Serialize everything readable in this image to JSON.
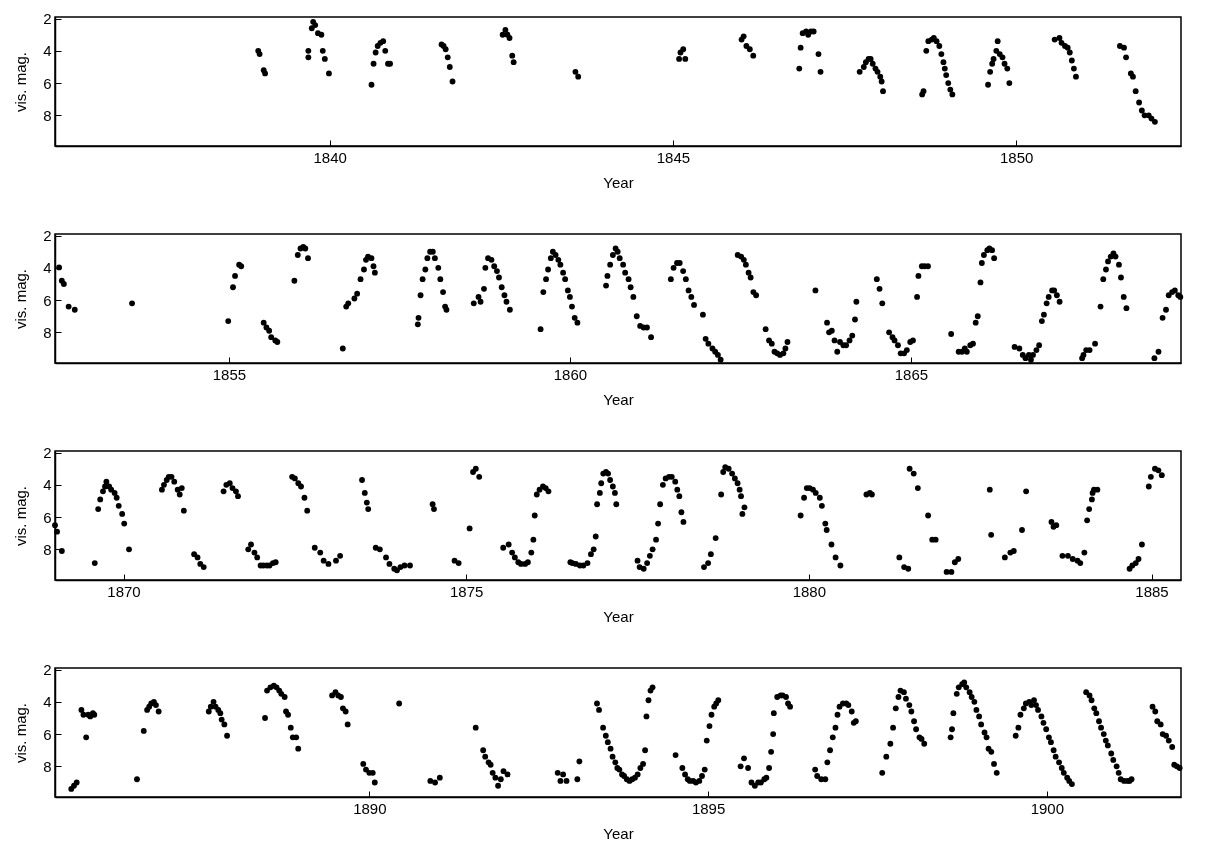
{
  "chart_data": [
    {
      "type": "scatter",
      "xlabel": "Year",
      "ylabel": "vis. mag.",
      "xlim": [
        1836.0,
        1852.4
      ],
      "xticks": [
        1840,
        1845,
        1850
      ],
      "ylim": [
        9.9,
        1.9
      ],
      "yticks": [
        2,
        4,
        6,
        8
      ],
      "grid": false,
      "marker": "circle",
      "series": [
        {
          "color": "#000000",
          "x": [
            1838.96,
            1838.98,
            1839.04,
            1839.06,
            1839.69,
            1839.69,
            1839.74,
            1839.76,
            1839.79,
            1839.83,
            1839.88,
            1839.9,
            1839.93,
            1839.99,
            1840.61,
            1840.64,
            1840.67,
            1840.7,
            1840.74,
            1840.78,
            1840.81,
            1840.85,
            1840.88,
            1841.63,
            1841.66,
            1841.69,
            1841.72,
            1841.75,
            1841.79,
            1842.52,
            1842.56,
            1842.59,
            1842.62,
            1842.66,
            1842.68,
            1843.58,
            1843.62,
            1845.09,
            1845.11,
            1845.15,
            1845.18,
            1846.0,
            1846.03,
            1846.07,
            1846.12,
            1846.17,
            1846.84,
            1846.86,
            1846.89,
            1846.94,
            1846.97,
            1847.01,
            1847.05,
            1847.12,
            1847.15,
            1847.72,
            1847.78,
            1847.81,
            1847.85,
            1847.88,
            1847.91,
            1847.95,
            1847.98,
            1848.02,
            1848.04,
            1848.06,
            1848.63,
            1848.65,
            1848.69,
            1848.72,
            1848.77,
            1848.8,
            1848.84,
            1848.88,
            1848.91,
            1848.94,
            1848.96,
            1848.98,
            1849.01,
            1849.04,
            1849.07,
            1849.59,
            1849.62,
            1849.65,
            1849.67,
            1849.71,
            1849.73,
            1849.76,
            1849.8,
            1849.83,
            1849.87,
            1849.9,
            1850.56,
            1850.63,
            1850.66,
            1850.71,
            1850.75,
            1850.78,
            1850.81,
            1850.84,
            1850.87,
            1851.51,
            1851.57,
            1851.6,
            1851.67,
            1851.7,
            1851.74,
            1851.79,
            1851.83,
            1851.87,
            1851.93,
            1851.97,
            1852.02
          ],
          "values": [
            4.0,
            4.2,
            5.2,
            5.4,
            4.0,
            4.4,
            2.6,
            2.2,
            2.4,
            2.9,
            3.0,
            4.0,
            4.5,
            5.4,
            6.1,
            4.8,
            4.1,
            3.7,
            3.5,
            3.4,
            4.0,
            4.8,
            4.8,
            3.6,
            3.7,
            3.9,
            4.4,
            5.0,
            5.9,
            3.0,
            2.7,
            3.0,
            3.2,
            4.3,
            4.7,
            5.3,
            5.6,
            4.5,
            4.1,
            3.9,
            4.5,
            3.3,
            3.1,
            3.7,
            3.9,
            4.3,
            5.1,
            3.8,
            2.9,
            2.8,
            3.0,
            2.8,
            2.8,
            4.2,
            5.3,
            5.3,
            5.0,
            4.7,
            4.5,
            4.5,
            4.8,
            5.1,
            5.3,
            5.6,
            5.9,
            6.5,
            6.7,
            6.5,
            4.0,
            3.4,
            3.3,
            3.2,
            3.4,
            3.7,
            4.2,
            4.7,
            5.1,
            5.5,
            6.0,
            6.4,
            6.7,
            6.1,
            5.3,
            4.8,
            4.5,
            4.0,
            3.4,
            4.2,
            4.4,
            4.8,
            5.1,
            6.0,
            3.3,
            3.2,
            3.5,
            3.7,
            3.8,
            4.1,
            4.6,
            5.1,
            5.6,
            3.7,
            3.8,
            4.4,
            5.4,
            5.6,
            6.5,
            7.2,
            7.7,
            8.0,
            8.0,
            8.2,
            8.4
          ]
        }
      ]
    },
    {
      "type": "scatter",
      "xlabel": "Year",
      "ylabel": "vis. mag.",
      "xlim": [
        1852.45,
        1868.96
      ],
      "xticks": [
        1855,
        1860,
        1865
      ],
      "ylim": [
        9.9,
        1.9
      ],
      "yticks": [
        2,
        4,
        6,
        8
      ],
      "grid": false,
      "marker": "circle",
      "series": [
        {
          "color": "#000000",
          "x": [
            1852.51,
            1852.55,
            1852.58,
            1852.65,
            1852.74,
            1853.58,
            1854.99,
            1855.06,
            1855.09,
            1855.15,
            1855.18,
            1855.51,
            1855.55,
            1855.59,
            1855.62,
            1855.68,
            1855.71,
            1855.96,
            1856.01,
            1856.05,
            1856.09,
            1856.12,
            1856.16,
            1856.67,
            1856.72,
            1856.75,
            1856.84,
            1856.88,
            1856.93,
            1856.98,
            1857.01,
            1857.04,
            1857.09,
            1857.12,
            1857.14,
            1857.77,
            1857.78,
            1857.81,
            1857.84,
            1857.88,
            1857.91,
            1857.95,
            1857.99,
            1858.02,
            1858.07,
            1858.1,
            1858.14,
            1858.17,
            1858.19,
            1858.59,
            1858.66,
            1858.69,
            1858.74,
            1858.76,
            1858.8,
            1858.85,
            1858.89,
            1858.93,
            1858.96,
            1859.0,
            1859.04,
            1859.07,
            1859.12,
            1859.57,
            1859.61,
            1859.65,
            1859.68,
            1859.72,
            1859.75,
            1859.79,
            1859.83,
            1859.86,
            1859.9,
            1859.93,
            1859.97,
            1860.0,
            1860.03,
            1860.07,
            1860.11,
            1860.53,
            1860.55,
            1860.59,
            1860.63,
            1860.67,
            1860.7,
            1860.73,
            1860.78,
            1860.81,
            1860.86,
            1860.89,
            1860.93,
            1860.98,
            1861.03,
            1861.08,
            1861.13,
            1861.19,
            1861.48,
            1861.52,
            1861.57,
            1861.61,
            1861.66,
            1861.7,
            1861.74,
            1861.78,
            1861.82,
            1861.95,
            1861.99,
            1862.03,
            1862.09,
            1862.13,
            1862.17,
            1862.21,
            1862.46,
            1862.51,
            1862.55,
            1862.58,
            1862.62,
            1862.65,
            1862.69,
            1862.73,
            1862.87,
            1862.92,
            1862.96,
            1863.0,
            1863.04,
            1863.08,
            1863.13,
            1863.16,
            1863.19,
            1863.6,
            1863.77,
            1863.8,
            1863.84,
            1863.88,
            1863.92,
            1863.96,
            1864.01,
            1864.05,
            1864.1,
            1864.14,
            1864.18,
            1864.2,
            1864.5,
            1864.54,
            1864.58,
            1864.68,
            1864.73,
            1864.76,
            1864.81,
            1864.85,
            1864.9,
            1864.94,
            1864.99,
            1865.03,
            1865.09,
            1865.11,
            1865.16,
            1865.2,
            1865.25,
            1865.59,
            1865.7,
            1865.75,
            1865.79,
            1865.82,
            1865.87,
            1865.91,
            1865.95,
            1865.98,
            1866.02,
            1866.04,
            1866.07,
            1866.12,
            1866.15,
            1866.19,
            1866.22,
            1866.52,
            1866.59,
            1866.64,
            1866.68,
            1866.73,
            1866.76,
            1866.79,
            1866.84,
            1866.88,
            1866.92,
            1866.95,
            1866.99,
            1867.02,
            1867.07,
            1867.1,
            1867.14,
            1867.18,
            1867.51,
            1867.53,
            1867.57,
            1867.62,
            1867.7,
            1867.78,
            1867.82,
            1867.86,
            1867.89,
            1867.93,
            1867.97,
            1868.0,
            1868.05,
            1868.08,
            1868.12,
            1868.16,
            1868.57,
            1868.63,
            1868.69,
            1868.74,
            1868.78,
            1868.83,
            1868.87,
            1868.92,
            1868.95
          ],
          "values": [
            3.97,
            4.8,
            5.0,
            6.4,
            6.6,
            6.2,
            7.3,
            5.2,
            4.5,
            3.8,
            3.9,
            7.4,
            7.7,
            7.9,
            8.3,
            8.5,
            8.6,
            4.8,
            3.2,
            2.8,
            2.7,
            2.8,
            3.4,
            9.0,
            6.4,
            6.2,
            5.9,
            5.6,
            4.7,
            4.1,
            3.5,
            3.3,
            3.4,
            3.9,
            4.3,
            7.5,
            7.1,
            5.7,
            4.7,
            4.1,
            3.4,
            3.0,
            3.0,
            3.4,
            4.0,
            4.7,
            5.5,
            6.4,
            6.6,
            6.2,
            5.8,
            6.1,
            5.3,
            4.0,
            3.4,
            3.5,
            3.9,
            4.2,
            4.6,
            5.2,
            5.7,
            6.1,
            6.6,
            7.8,
            5.5,
            4.7,
            4.1,
            3.4,
            3.0,
            3.2,
            3.5,
            3.8,
            4.3,
            4.7,
            5.4,
            5.8,
            6.4,
            7.1,
            7.4,
            5.1,
            4.5,
            3.8,
            3.2,
            2.8,
            3.0,
            3.4,
            3.8,
            4.3,
            4.7,
            5.2,
            5.8,
            7.0,
            7.6,
            7.7,
            7.7,
            8.3,
            4.7,
            4.0,
            3.7,
            3.7,
            4.2,
            4.7,
            5.4,
            5.8,
            6.3,
            6.9,
            8.4,
            8.7,
            9.0,
            9.2,
            9.4,
            9.7,
            3.2,
            3.3,
            3.5,
            3.8,
            4.3,
            4.6,
            5.5,
            5.7,
            7.8,
            8.5,
            8.7,
            9.2,
            9.3,
            9.4,
            9.3,
            9.0,
            8.6,
            5.4,
            7.4,
            8.0,
            7.9,
            8.5,
            9.2,
            8.6,
            8.8,
            8.8,
            8.5,
            8.2,
            7.2,
            6.1,
            4.7,
            5.3,
            6.2,
            8.0,
            8.3,
            8.5,
            8.8,
            9.3,
            9.3,
            9.1,
            8.6,
            8.5,
            5.8,
            4.5,
            3.9,
            3.9,
            3.9,
            8.1,
            9.2,
            9.2,
            9.0,
            9.2,
            8.8,
            8.7,
            7.4,
            7.0,
            4.9,
            3.7,
            3.2,
            2.9,
            2.8,
            2.9,
            3.4,
            8.9,
            9.0,
            9.4,
            9.6,
            9.4,
            9.7,
            9.4,
            9.1,
            8.8,
            7.3,
            6.9,
            6.2,
            5.8,
            5.4,
            5.4,
            5.7,
            6.1,
            9.6,
            9.4,
            9.1,
            9.1,
            8.7,
            6.4,
            4.7,
            4.1,
            3.6,
            3.3,
            3.1,
            3.3,
            3.8,
            4.6,
            5.8,
            6.5,
            9.6,
            9.2,
            7.1,
            6.6,
            5.7,
            5.5,
            5.4,
            5.7,
            5.8
          ]
        }
      ]
    },
    {
      "type": "scatter",
      "xlabel": "Year",
      "ylabel": "vis. mag.",
      "xlim": [
        1869.0,
        1885.43
      ],
      "xticks": [
        1870,
        1875,
        1880,
        1885
      ],
      "ylim": [
        9.9,
        1.9
      ],
      "yticks": [
        2,
        4,
        6,
        8
      ],
      "grid": false,
      "marker": "circle",
      "series": [
        {
          "color": "#000000",
          "x": [
            1869.0,
            1869.03,
            1869.1,
            1869.58,
            1869.63,
            1869.66,
            1869.7,
            1869.73,
            1869.75,
            1869.79,
            1869.82,
            1869.87,
            1869.9,
            1869.93,
            1869.98,
            1870.01,
            1870.08,
            1870.56,
            1870.59,
            1870.63,
            1870.66,
            1870.7,
            1870.74,
            1870.79,
            1870.82,
            1870.85,
            1870.88,
            1871.03,
            1871.08,
            1871.12,
            1871.17,
            1871.46,
            1871.5,
            1871.55,
            1871.59,
            1871.64,
            1871.67,
            1871.82,
            1871.86,
            1871.91,
            1871.95,
            1872.0,
            1872.04,
            1872.09,
            1872.13,
            1872.18,
            1872.22,
            1872.46,
            1872.5,
            1872.55,
            1872.59,
            1872.64,
            1872.68,
            1872.79,
            1872.87,
            1872.92,
            1872.99,
            1873.1,
            1873.16,
            1873.48,
            1873.52,
            1873.55,
            1873.57,
            1873.68,
            1873.74,
            1873.83,
            1873.88,
            1873.95,
            1873.99,
            1874.04,
            1874.1,
            1874.18,
            1874.51,
            1874.53,
            1874.83,
            1874.89,
            1875.05,
            1875.1,
            1875.14,
            1875.19,
            1875.54,
            1875.62,
            1875.67,
            1875.71,
            1875.76,
            1875.8,
            1875.86,
            1875.9,
            1875.95,
            1875.98,
            1876.0,
            1876.03,
            1876.07,
            1876.12,
            1876.16,
            1876.2,
            1876.52,
            1876.55,
            1876.6,
            1876.66,
            1876.71,
            1876.77,
            1876.82,
            1876.86,
            1876.89,
            1876.91,
            1876.95,
            1876.97,
            1877.0,
            1877.04,
            1877.07,
            1877.1,
            1877.14,
            1877.17,
            1877.19,
            1877.5,
            1877.53,
            1877.59,
            1877.64,
            1877.68,
            1877.72,
            1877.77,
            1877.8,
            1877.83,
            1877.87,
            1877.91,
            1877.96,
            1878.0,
            1878.05,
            1878.08,
            1878.11,
            1878.14,
            1878.17,
            1878.47,
            1878.53,
            1878.57,
            1878.64,
            1878.72,
            1878.75,
            1878.78,
            1878.83,
            1878.88,
            1878.92,
            1878.96,
            1878.99,
            1879.01,
            1879.03,
            1879.06,
            1879.88,
            1879.93,
            1879.97,
            1880.01,
            1880.06,
            1880.1,
            1880.16,
            1880.19,
            1880.24,
            1880.26,
            1880.33,
            1880.39,
            1880.46,
            1880.84,
            1880.89,
            1880.92,
            1881.32,
            1881.39,
            1881.45,
            1881.47,
            1881.53,
            1881.59,
            1881.74,
            1881.8,
            1881.85,
            1882.01,
            1882.08,
            1882.13,
            1882.18,
            1882.64,
            1882.66,
            1882.86,
            1882.94,
            1882.99,
            1883.11,
            1883.17,
            1883.54,
            1883.57,
            1883.61,
            1883.7,
            1883.78,
            1883.85,
            1883.92,
            1883.96,
            1884.02,
            1884.06,
            1884.09,
            1884.13,
            1884.14,
            1884.16,
            1884.21,
            1884.68,
            1884.72,
            1884.77,
            1884.81,
            1884.86,
            1884.96,
            1884.99,
            1885.05,
            1885.1,
            1885.15
          ],
          "values": [
            6.5,
            6.9,
            8.1,
            8.85,
            5.5,
            4.9,
            4.4,
            4.1,
            3.8,
            4.1,
            4.3,
            4.5,
            4.8,
            5.3,
            5.8,
            6.4,
            8.0,
            4.3,
            4.0,
            3.7,
            3.5,
            3.5,
            3.8,
            4.3,
            4.6,
            4.2,
            5.6,
            8.3,
            8.5,
            8.9,
            9.1,
            4.4,
            4.0,
            3.9,
            4.2,
            4.4,
            4.7,
            8.0,
            7.7,
            8.2,
            8.5,
            9.0,
            9.0,
            9.0,
            9.0,
            8.85,
            8.8,
            3.5,
            3.6,
            3.9,
            4.1,
            4.8,
            5.6,
            7.9,
            8.2,
            8.7,
            8.9,
            8.7,
            8.4,
            3.7,
            4.5,
            5.1,
            5.5,
            7.9,
            8.0,
            8.5,
            8.9,
            9.2,
            9.3,
            9.1,
            9.0,
            9.0,
            5.2,
            5.5,
            8.7,
            8.85,
            6.7,
            3.2,
            3.0,
            3.5,
            7.9,
            7.7,
            8.2,
            8.5,
            8.8,
            8.9,
            8.9,
            8.8,
            8.2,
            7.4,
            5.9,
            4.6,
            4.3,
            4.1,
            4.2,
            4.4,
            8.8,
            8.85,
            8.9,
            9.0,
            9.0,
            8.85,
            8.3,
            8.0,
            7.2,
            5.2,
            4.5,
            3.9,
            3.3,
            3.2,
            3.3,
            3.7,
            4.1,
            4.5,
            5.2,
            8.7,
            9.1,
            9.2,
            8.85,
            8.4,
            8.0,
            7.4,
            6.4,
            5.2,
            4.0,
            3.6,
            3.5,
            3.5,
            3.8,
            4.3,
            4.7,
            5.7,
            6.3,
            9.1,
            8.85,
            8.3,
            7.3,
            4.6,
            3.2,
            2.9,
            3.0,
            3.3,
            3.6,
            3.9,
            4.3,
            4.7,
            5.8,
            5.4,
            5.9,
            4.8,
            4.2,
            4.2,
            4.3,
            4.5,
            4.8,
            5.3,
            6.4,
            6.8,
            7.7,
            8.5,
            9.0,
            4.6,
            4.5,
            4.6,
            8.5,
            9.1,
            9.2,
            3.0,
            3.3,
            4.2,
            5.9,
            7.4,
            7.4,
            9.4,
            9.4,
            8.8,
            8.6,
            4.3,
            7.1,
            8.5,
            8.2,
            8.1,
            6.8,
            4.4,
            6.3,
            6.6,
            6.5,
            8.4,
            8.4,
            8.6,
            8.7,
            8.85,
            8.2,
            6.2,
            5.5,
            4.9,
            4.5,
            4.3,
            4.3,
            9.2,
            9.0,
            8.85,
            8.6,
            7.7,
            4.1,
            3.5,
            3.0,
            3.1,
            3.4
          ]
        }
      ]
    },
    {
      "type": "scatter",
      "xlabel": "Year",
      "ylabel": "vis. mag.",
      "xlim": [
        1885.36,
        1901.98
      ],
      "xticks": [
        1890,
        1895,
        1900
      ],
      "ylim": [
        9.9,
        1.9
      ],
      "yticks": [
        2,
        4,
        6,
        8
      ],
      "grid": false,
      "marker": "circle",
      "series": [
        {
          "color": "#000000",
          "x": [
            1885.6,
            1885.64,
            1885.68,
            1885.75,
            1885.78,
            1885.82,
            1885.85,
            1885.88,
            1885.92,
            1885.94,
            1886.57,
            1886.67,
            1886.72,
            1886.75,
            1886.78,
            1886.82,
            1886.85,
            1886.89,
            1887.63,
            1887.66,
            1887.7,
            1887.73,
            1887.77,
            1887.8,
            1887.82,
            1887.86,
            1887.9,
            1888.46,
            1888.49,
            1888.54,
            1888.59,
            1888.63,
            1888.67,
            1888.7,
            1888.75,
            1888.77,
            1888.8,
            1888.84,
            1888.87,
            1888.92,
            1888.95,
            1889.45,
            1889.5,
            1889.54,
            1889.58,
            1889.61,
            1889.65,
            1889.68,
            1889.91,
            1889.95,
            1890.0,
            1890.05,
            1890.08,
            1890.44,
            1890.9,
            1890.97,
            1891.04,
            1891.57,
            1891.68,
            1891.71,
            1891.76,
            1891.79,
            1891.82,
            1891.86,
            1891.9,
            1891.94,
            1891.98,
            1892.04,
            1892.78,
            1892.82,
            1892.86,
            1892.91,
            1893.07,
            1893.1,
            1893.36,
            1893.39,
            1893.45,
            1893.49,
            1893.52,
            1893.56,
            1893.59,
            1893.63,
            1893.66,
            1893.69,
            1893.73,
            1893.76,
            1893.8,
            1893.84,
            1893.88,
            1893.92,
            1893.96,
            1894.0,
            1894.04,
            1894.07,
            1894.09,
            1894.12,
            1894.15,
            1894.18,
            1894.52,
            1894.62,
            1894.66,
            1894.7,
            1894.73,
            1894.78,
            1894.82,
            1894.87,
            1894.91,
            1894.95,
            1894.98,
            1895.02,
            1895.05,
            1895.09,
            1895.12,
            1895.15,
            1895.48,
            1895.53,
            1895.59,
            1895.64,
            1895.69,
            1895.74,
            1895.78,
            1895.83,
            1895.86,
            1895.9,
            1895.93,
            1895.96,
            1895.97,
            1896.02,
            1896.07,
            1896.1,
            1896.15,
            1896.18,
            1896.21,
            1896.58,
            1896.61,
            1896.67,
            1896.73,
            1896.76,
            1896.8,
            1896.84,
            1896.88,
            1896.91,
            1896.94,
            1896.99,
            1897.04,
            1897.07,
            1897.12,
            1897.15,
            1897.18,
            1897.57,
            1897.63,
            1897.69,
            1897.73,
            1897.77,
            1897.81,
            1897.84,
            1897.89,
            1897.92,
            1897.97,
            1898.0,
            1898.04,
            1898.07,
            1898.12,
            1898.15,
            1898.19,
            1898.58,
            1898.6,
            1898.62,
            1898.67,
            1898.7,
            1898.75,
            1898.78,
            1898.81,
            1898.86,
            1898.89,
            1898.93,
            1898.96,
            1899.0,
            1899.03,
            1899.08,
            1899.11,
            1899.14,
            1899.18,
            1899.22,
            1899.26,
            1899.54,
            1899.58,
            1899.61,
            1899.66,
            1899.69,
            1899.74,
            1899.77,
            1899.81,
            1899.84,
            1899.87,
            1899.92,
            1899.95,
            1899.99,
            1900.03,
            1900.06,
            1900.1,
            1900.13,
            1900.18,
            1900.22,
            1900.25,
            1900.3,
            1900.33,
            1900.37,
            1900.58,
            1900.63,
            1900.66,
            1900.7,
            1900.73,
            1900.77,
            1900.8,
            1900.84,
            1900.87,
            1900.9,
            1900.95,
            1900.98,
            1901.03,
            1901.06,
            1901.09,
            1901.14,
            1901.19,
            1901.22,
            1901.25,
            1901.56,
            1901.6,
            1901.63,
            1901.68,
            1901.71,
            1901.76,
            1901.8,
            1901.85,
            1901.88,
            1901.92,
            1901.96
          ],
          "values": [
            9.4,
            9.2,
            9.0,
            4.5,
            4.8,
            6.2,
            4.8,
            4.9,
            4.7,
            4.8,
            8.8,
            5.8,
            4.5,
            4.3,
            4.1,
            4.0,
            4.2,
            4.6,
            4.6,
            4.3,
            4.0,
            4.3,
            4.5,
            4.7,
            5.1,
            5.4,
            6.1,
            5.0,
            3.3,
            3.1,
            3.0,
            3.1,
            3.3,
            3.5,
            3.7,
            4.6,
            4.8,
            5.6,
            6.2,
            6.2,
            6.9,
            3.6,
            3.4,
            3.6,
            3.7,
            4.4,
            4.6,
            5.4,
            7.85,
            8.2,
            8.4,
            8.4,
            9.0,
            4.1,
            8.9,
            9.0,
            8.7,
            5.6,
            7.0,
            7.4,
            7.75,
            7.9,
            8.4,
            8.7,
            9.2,
            8.8,
            8.3,
            8.5,
            8.4,
            8.9,
            8.5,
            8.9,
            8.8,
            7.7,
            4.1,
            4.5,
            5.6,
            6.1,
            6.5,
            6.9,
            7.4,
            7.75,
            8.1,
            8.2,
            8.5,
            8.6,
            8.8,
            8.9,
            8.8,
            8.7,
            8.5,
            8.1,
            7.85,
            7.0,
            4.9,
            3.9,
            3.3,
            3.1,
            7.3,
            8.1,
            8.5,
            8.8,
            8.9,
            8.9,
            9.0,
            8.9,
            8.6,
            8.2,
            6.4,
            5.5,
            4.8,
            4.3,
            4.1,
            3.9,
            8.0,
            7.5,
            8.1,
            9.0,
            9.2,
            9.0,
            9.0,
            8.8,
            8.7,
            8.1,
            7.1,
            6.0,
            4.7,
            3.7,
            3.6,
            3.6,
            3.7,
            4.1,
            4.3,
            8.2,
            8.6,
            8.8,
            8.8,
            7.75,
            7.0,
            6.2,
            5.6,
            4.8,
            4.3,
            4.1,
            4.1,
            4.2,
            4.6,
            5.3,
            5.2,
            8.4,
            7.4,
            6.6,
            5.6,
            4.4,
            3.7,
            3.3,
            3.4,
            3.8,
            4.2,
            4.6,
            5.2,
            5.7,
            6.2,
            6.3,
            6.6,
            6.2,
            5.7,
            4.7,
            3.5,
            3.1,
            2.9,
            2.8,
            3.1,
            3.4,
            3.7,
            4.0,
            4.5,
            4.9,
            5.4,
            5.9,
            6.2,
            6.9,
            7.1,
            7.85,
            8.4,
            6.1,
            5.6,
            4.8,
            4.4,
            4.1,
            4.0,
            4.2,
            3.9,
            4.2,
            4.5,
            4.9,
            5.3,
            5.7,
            6.2,
            6.5,
            7.0,
            7.4,
            7.75,
            8.1,
            8.4,
            8.7,
            8.9,
            9.1,
            3.4,
            3.6,
            3.9,
            4.4,
            4.7,
            5.2,
            5.6,
            6.0,
            6.4,
            6.7,
            7.2,
            7.6,
            8.0,
            8.4,
            8.8,
            8.9,
            8.9,
            8.9,
            8.8,
            4.3,
            4.6,
            5.2,
            5.4,
            6.0,
            6.1,
            6.4,
            6.8,
            7.9,
            8.0,
            8.1
          ]
        }
      ]
    }
  ]
}
